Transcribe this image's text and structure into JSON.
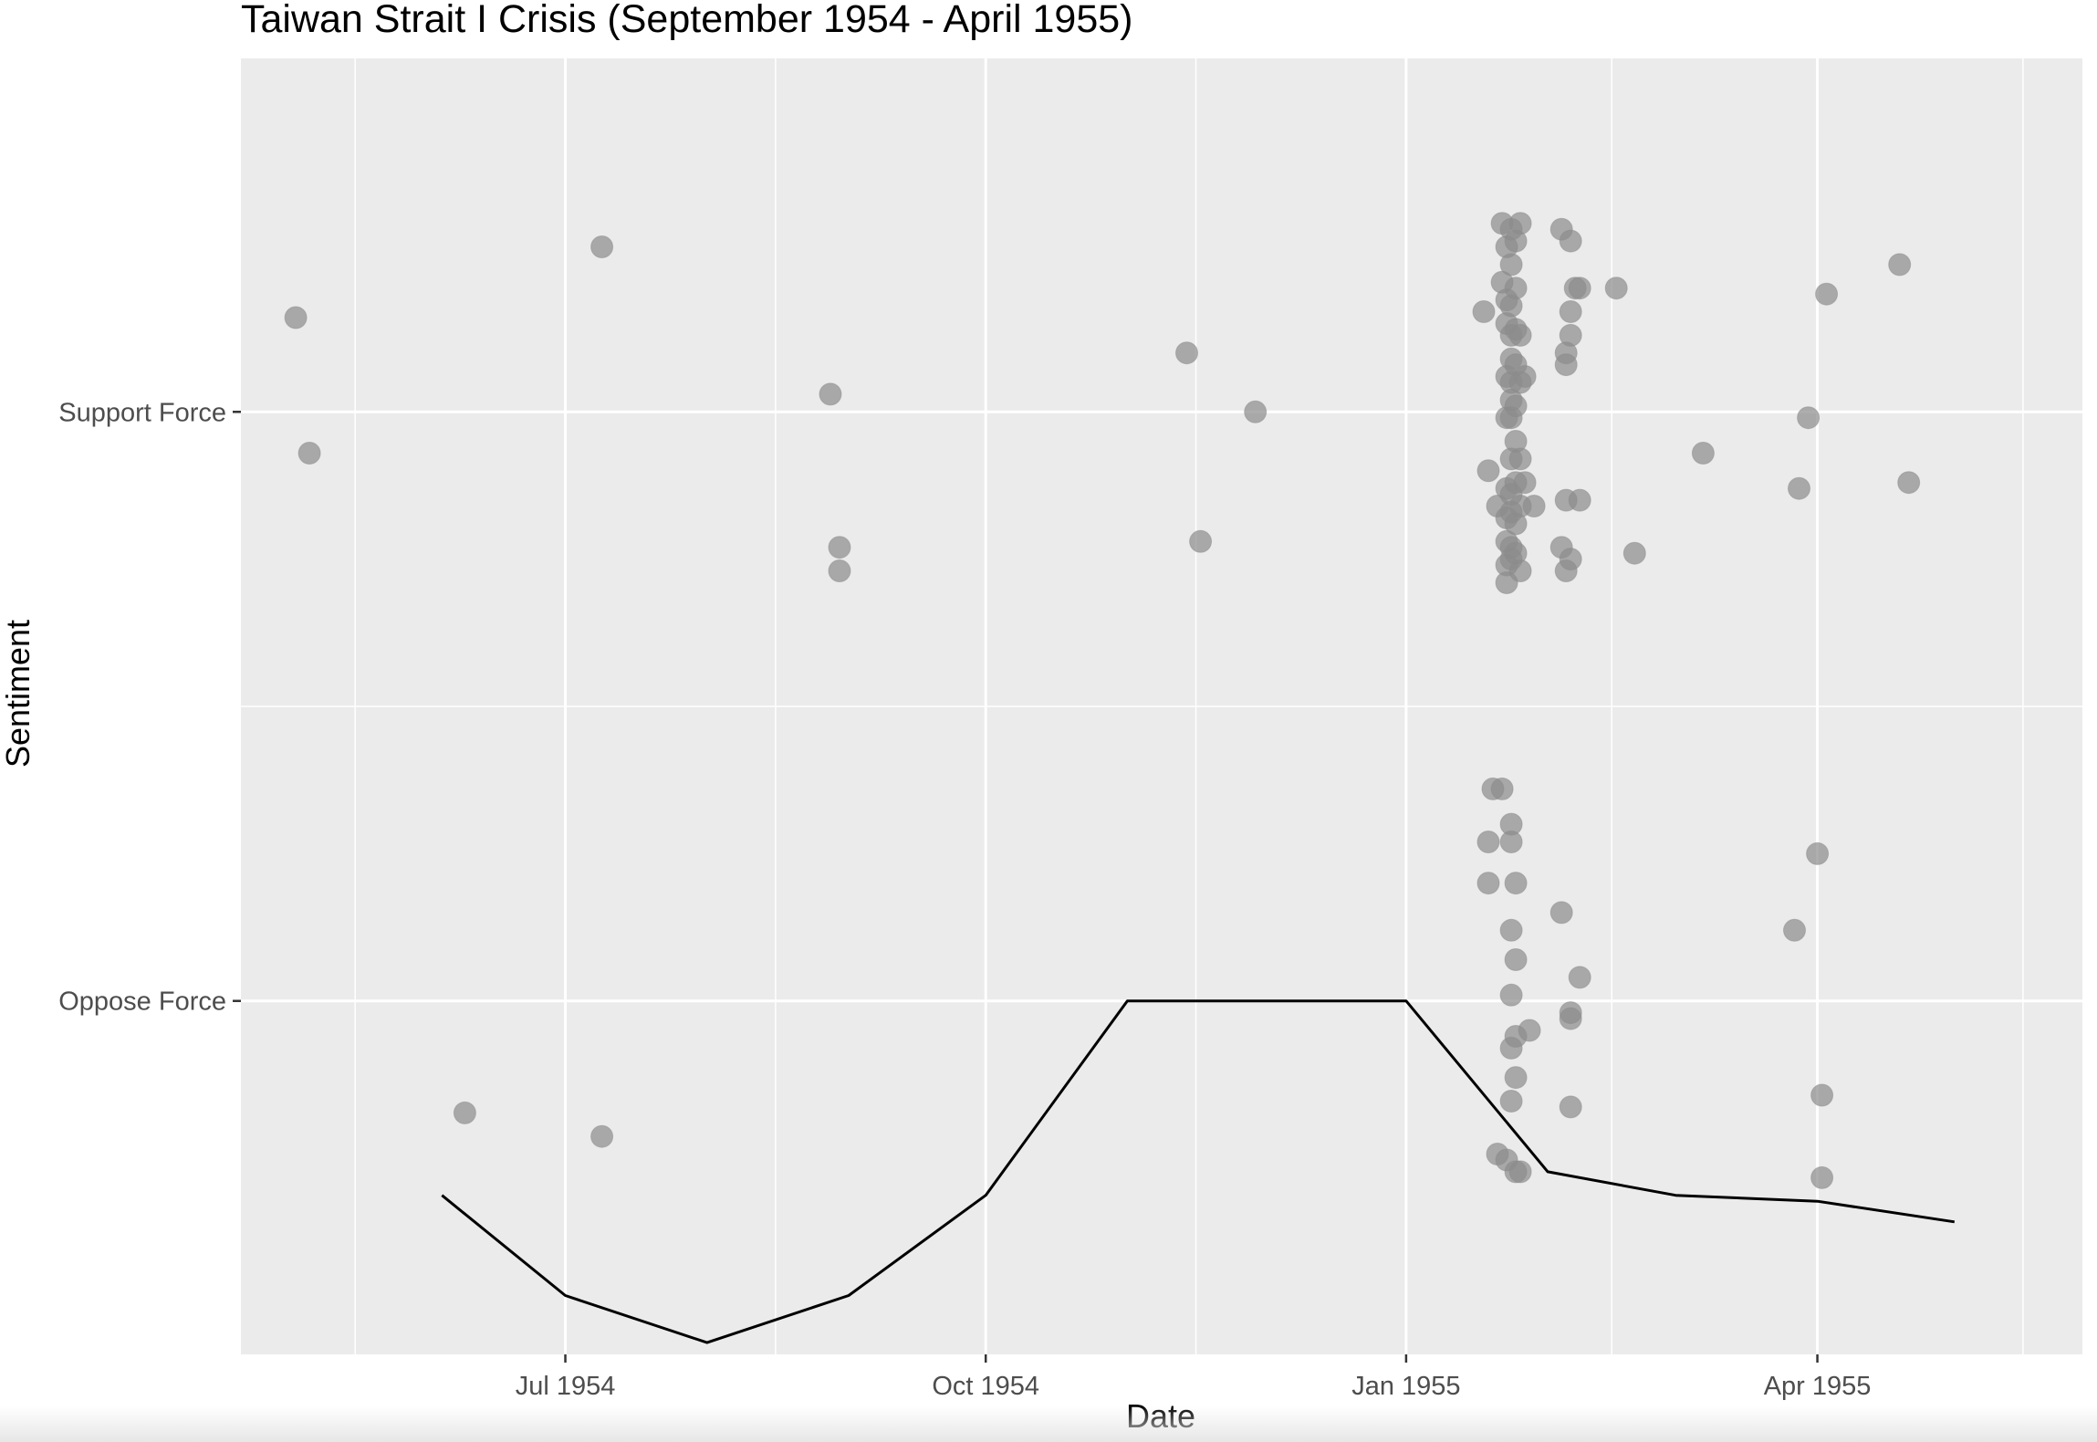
{
  "chart_data": {
    "type": "scatter",
    "title": "Taiwan Strait I Crisis (September 1954 - April 1955)",
    "xlabel": "Date",
    "ylabel": "Sentiment",
    "xlim": [
      "1954-04-21",
      "1955-05-29"
    ],
    "ylim": [
      -0.6,
      1.6
    ],
    "x_ticks": [
      {
        "date": "1954-07-01",
        "label": "Jul 1954"
      },
      {
        "date": "1954-10-01",
        "label": "Oct 1954"
      },
      {
        "date": "1955-01-01",
        "label": "Jan 1955"
      },
      {
        "date": "1955-04-01",
        "label": "Apr 1955"
      }
    ],
    "y_ticks": [
      {
        "value": 0,
        "label": "Oppose Force"
      },
      {
        "value": 1,
        "label": "Support Force"
      }
    ],
    "grid": true,
    "background": "#ebebeb",
    "point_color": "#8c8c8c",
    "line_color": "#000000",
    "series": [
      {
        "type": "scatter",
        "points": [
          {
            "x": "1954-05-03",
            "y": 1.16
          },
          {
            "x": "1954-05-06",
            "y": 0.93
          },
          {
            "x": "1954-06-09",
            "y": -0.19
          },
          {
            "x": "1954-07-09",
            "y": 1.28
          },
          {
            "x": "1954-07-09",
            "y": -0.23
          },
          {
            "x": "1954-08-28",
            "y": 1.03
          },
          {
            "x": "1954-08-30",
            "y": 0.77
          },
          {
            "x": "1954-08-30",
            "y": 0.73
          },
          {
            "x": "1954-11-14",
            "y": 1.1
          },
          {
            "x": "1954-11-17",
            "y": 0.78
          },
          {
            "x": "1954-11-29",
            "y": 1.0
          },
          {
            "x": "1955-01-18",
            "y": 1.17
          },
          {
            "x": "1955-01-19",
            "y": 0.9
          },
          {
            "x": "1955-01-19",
            "y": 0.27
          },
          {
            "x": "1955-01-19",
            "y": 0.2
          },
          {
            "x": "1955-01-20",
            "y": 0.36
          },
          {
            "x": "1955-01-22",
            "y": 0.36
          },
          {
            "x": "1955-01-21",
            "y": 0.84
          },
          {
            "x": "1955-01-21",
            "y": -0.26
          },
          {
            "x": "1955-01-22",
            "y": 1.22
          },
          {
            "x": "1955-01-22",
            "y": 1.32
          },
          {
            "x": "1955-01-23",
            "y": 1.28
          },
          {
            "x": "1955-01-23",
            "y": 1.19
          },
          {
            "x": "1955-01-23",
            "y": 1.15
          },
          {
            "x": "1955-01-23",
            "y": 1.06
          },
          {
            "x": "1955-01-23",
            "y": 0.99
          },
          {
            "x": "1955-01-23",
            "y": 0.87
          },
          {
            "x": "1955-01-23",
            "y": 0.82
          },
          {
            "x": "1955-01-23",
            "y": 0.78
          },
          {
            "x": "1955-01-23",
            "y": 0.74
          },
          {
            "x": "1955-01-23",
            "y": 0.71
          },
          {
            "x": "1955-01-24",
            "y": 0.27
          },
          {
            "x": "1955-01-24",
            "y": 0.3
          },
          {
            "x": "1955-01-24",
            "y": 0.12
          },
          {
            "x": "1955-01-24",
            "y": 0.01
          },
          {
            "x": "1955-01-24",
            "y": -0.08
          },
          {
            "x": "1955-01-24",
            "y": -0.17
          },
          {
            "x": "1955-01-23",
            "y": -0.27
          },
          {
            "x": "1955-01-24",
            "y": 1.31
          },
          {
            "x": "1955-01-24",
            "y": 1.25
          },
          {
            "x": "1955-01-24",
            "y": 1.18
          },
          {
            "x": "1955-01-24",
            "y": 1.13
          },
          {
            "x": "1955-01-24",
            "y": 1.09
          },
          {
            "x": "1955-01-24",
            "y": 1.05
          },
          {
            "x": "1955-01-24",
            "y": 1.02
          },
          {
            "x": "1955-01-24",
            "y": 0.99
          },
          {
            "x": "1955-01-24",
            "y": 0.92
          },
          {
            "x": "1955-01-24",
            "y": 0.86
          },
          {
            "x": "1955-01-24",
            "y": 0.83
          },
          {
            "x": "1955-01-24",
            "y": 0.77
          },
          {
            "x": "1955-01-24",
            "y": 0.75
          },
          {
            "x": "1955-01-25",
            "y": 0.07
          },
          {
            "x": "1955-01-25",
            "y": -0.13
          },
          {
            "x": "1955-01-25",
            "y": 1.29
          },
          {
            "x": "1955-01-25",
            "y": 1.21
          },
          {
            "x": "1955-01-25",
            "y": 1.14
          },
          {
            "x": "1955-01-25",
            "y": 1.08
          },
          {
            "x": "1955-01-25",
            "y": 1.01
          },
          {
            "x": "1955-01-25",
            "y": 0.95
          },
          {
            "x": "1955-01-25",
            "y": 0.88
          },
          {
            "x": "1955-01-25",
            "y": 0.81
          },
          {
            "x": "1955-01-25",
            "y": 0.76
          },
          {
            "x": "1955-01-25",
            "y": 0.2
          },
          {
            "x": "1955-01-25",
            "y": -0.06
          },
          {
            "x": "1955-01-25",
            "y": -0.29
          },
          {
            "x": "1955-01-26",
            "y": 1.32
          },
          {
            "x": "1955-01-26",
            "y": 1.13
          },
          {
            "x": "1955-01-26",
            "y": 1.05
          },
          {
            "x": "1955-01-26",
            "y": 0.92
          },
          {
            "x": "1955-01-26",
            "y": 0.84
          },
          {
            "x": "1955-01-26",
            "y": 0.73
          },
          {
            "x": "1955-01-26",
            "y": -0.29
          },
          {
            "x": "1955-01-27",
            "y": 1.06
          },
          {
            "x": "1955-01-27",
            "y": 0.88
          },
          {
            "x": "1955-01-28",
            "y": -0.05
          },
          {
            "x": "1955-01-29",
            "y": 0.84
          },
          {
            "x": "1955-02-04",
            "y": 1.31
          },
          {
            "x": "1955-02-04",
            "y": 0.77
          },
          {
            "x": "1955-02-04",
            "y": 0.15
          },
          {
            "x": "1955-02-05",
            "y": 1.1
          },
          {
            "x": "1955-02-05",
            "y": 1.08
          },
          {
            "x": "1955-02-05",
            "y": 0.85
          },
          {
            "x": "1955-02-05",
            "y": 0.73
          },
          {
            "x": "1955-02-06",
            "y": 1.29
          },
          {
            "x": "1955-02-06",
            "y": 1.17
          },
          {
            "x": "1955-02-06",
            "y": 1.13
          },
          {
            "x": "1955-02-06",
            "y": 0.75
          },
          {
            "x": "1955-02-06",
            "y": -0.02
          },
          {
            "x": "1955-02-06",
            "y": -0.03
          },
          {
            "x": "1955-02-06",
            "y": -0.18
          },
          {
            "x": "1955-02-07",
            "y": 1.21
          },
          {
            "x": "1955-02-08",
            "y": 1.21
          },
          {
            "x": "1955-02-08",
            "y": 0.85
          },
          {
            "x": "1955-02-08",
            "y": 0.04
          },
          {
            "x": "1955-02-16",
            "y": 1.21
          },
          {
            "x": "1955-02-20",
            "y": 0.76
          },
          {
            "x": "1955-03-07",
            "y": 0.93
          },
          {
            "x": "1955-03-27",
            "y": 0.12
          },
          {
            "x": "1955-03-28",
            "y": 0.87
          },
          {
            "x": "1955-03-30",
            "y": 0.99
          },
          {
            "x": "1955-04-01",
            "y": 0.25
          },
          {
            "x": "1955-04-02",
            "y": -0.16
          },
          {
            "x": "1955-04-02",
            "y": -0.3
          },
          {
            "x": "1955-04-03",
            "y": 1.2
          },
          {
            "x": "1955-04-19",
            "y": 1.25
          },
          {
            "x": "1955-04-21",
            "y": 0.88
          }
        ]
      },
      {
        "type": "line",
        "points": [
          {
            "x": "1954-06-04",
            "y": -0.33
          },
          {
            "x": "1954-07-01",
            "y": -0.5
          },
          {
            "x": "1954-08-01",
            "y": -0.58
          },
          {
            "x": "1954-09-01",
            "y": -0.5
          },
          {
            "x": "1954-10-01",
            "y": -0.33
          },
          {
            "x": "1954-11-01",
            "y": 0.0
          },
          {
            "x": "1954-12-01",
            "y": 0.0
          },
          {
            "x": "1955-01-01",
            "y": 0.0
          },
          {
            "x": "1955-02-01",
            "y": -0.29
          },
          {
            "x": "1955-03-01",
            "y": -0.33
          },
          {
            "x": "1955-04-01",
            "y": -0.34
          },
          {
            "x": "1955-05-01",
            "y": -0.375
          }
        ]
      }
    ]
  }
}
